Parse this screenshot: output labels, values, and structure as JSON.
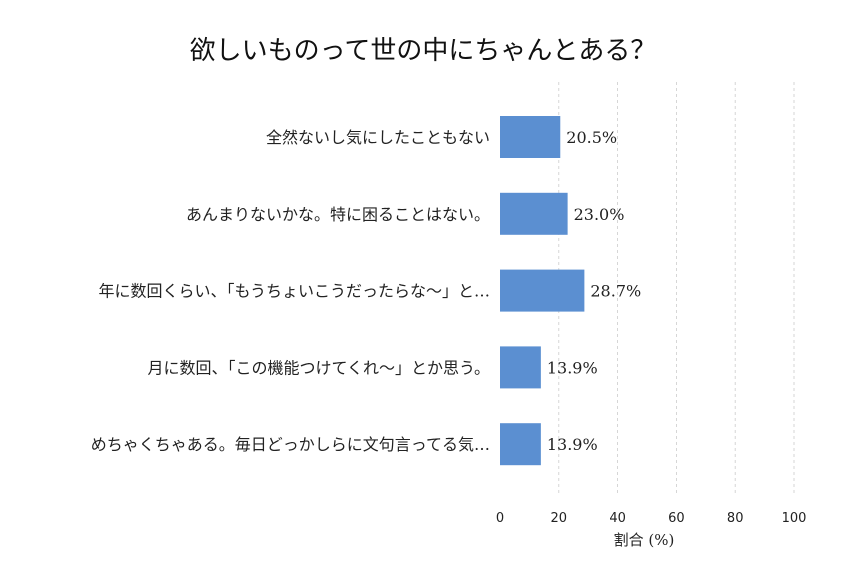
{
  "chart_data": {
    "type": "bar",
    "orientation": "horizontal",
    "title": "欲しいものって世の中にちゃんとある？",
    "categories": [
      "全然ないし気にしたこともない",
      "あんまりないかな。特に困ることはない。",
      "年に数回くらい、「もうちょいこうだったらな〜」と…",
      "月に数回、「この機能つけてくれ〜」とか思う。",
      "めちゃくちゃある。毎日どっかしらに文句言ってる気…"
    ],
    "values": [
      20.5,
      23.0,
      28.7,
      13.9,
      13.9
    ],
    "value_labels": [
      "20.5%",
      "23.0%",
      "28.7%",
      "13.9%",
      "13.9%"
    ],
    "xlabel": "割合 (%)",
    "ylabel": "",
    "xlim": [
      0,
      100
    ],
    "xticks": [
      "0",
      "20",
      "40",
      "60",
      "80",
      "100"
    ],
    "grid": true,
    "bar_color": "#5b8fd1",
    "grid_color": "#cccccc"
  }
}
